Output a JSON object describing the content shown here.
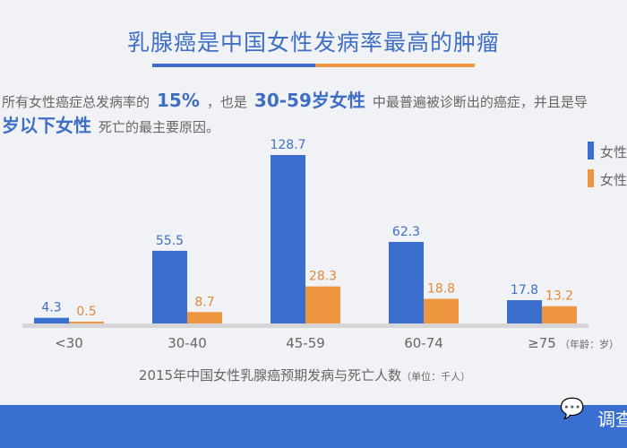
{
  "title": "乳腺癌是中国女性发病率最高的肿瘤",
  "intro": {
    "line1_a": "所有女性癌症总发病率的",
    "line1_b": "15%",
    "line1_c": "，也是",
    "line1_d": "30-59岁女性",
    "line1_e": "中最普遍被诊断出的癌症，并且是导",
    "line2_a": "岁以下女性",
    "line2_b": "死亡的最主要原因。"
  },
  "legend": [
    {
      "label": "女性",
      "color": "#3a6fd0"
    },
    {
      "label": "女性",
      "color": "#ef9640"
    }
  ],
  "chart_data": {
    "type": "bar",
    "categories": [
      "<30",
      "30-40",
      "45-59",
      "60-74",
      "≥75"
    ],
    "series": [
      {
        "values": [
          4.3,
          55.5,
          128.7,
          62.3,
          17.8
        ],
        "color": "#3a6fd0"
      },
      {
        "values": [
          0.5,
          8.7,
          28.3,
          18.8,
          13.2
        ],
        "color": "#ef9640"
      }
    ],
    "xunit": "（年龄：岁）",
    "ylim": [
      0,
      130
    ]
  },
  "caption": {
    "main": "2015年中国女性乳腺癌预期发病与死亡人数",
    "unit": "（单位：千人）"
  },
  "footer": {
    "brand": "调查",
    "icon": "wechat-icon"
  }
}
